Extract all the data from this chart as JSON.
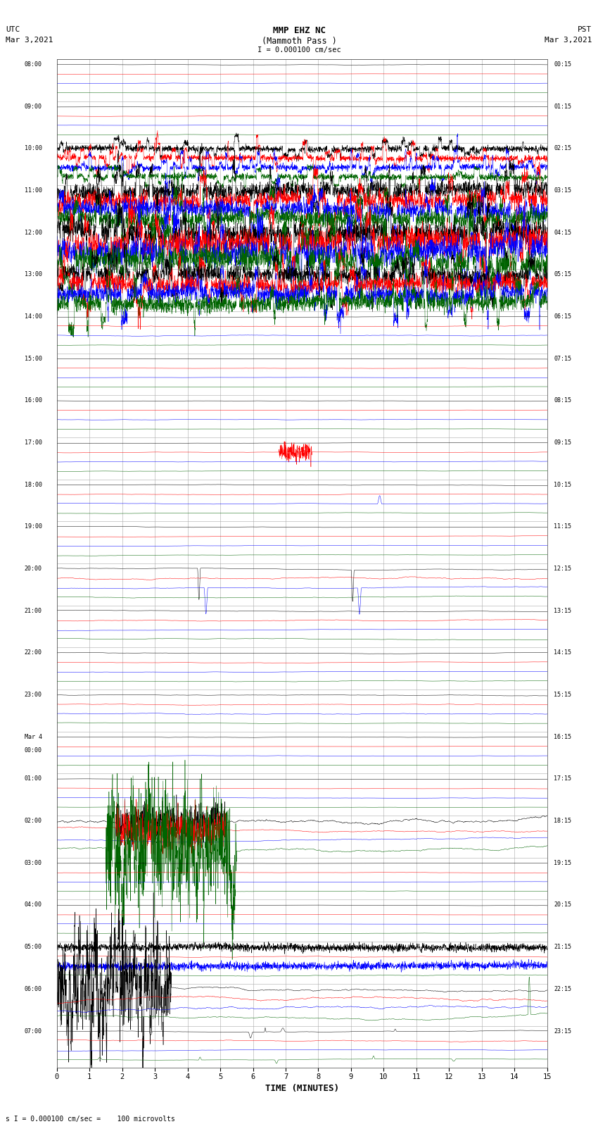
{
  "title_line1": "MMP EHZ NC",
  "title_line2": "(Mammoth Pass )",
  "title_line3": "I = 0.000100 cm/sec",
  "left_label_top": "UTC",
  "left_label_date": "Mar 3,2021",
  "right_label_top": "PST",
  "right_label_date": "Mar 3,2021",
  "xlabel": "TIME (MINUTES)",
  "footer": "s I = 0.000100 cm/sec =    100 microvolts",
  "xmin": 0,
  "xmax": 15,
  "background_color": "#ffffff",
  "trace_colors": [
    "#000000",
    "#ff0000",
    "#0000ff",
    "#006400"
  ],
  "utc_labels": [
    "08:00",
    "09:00",
    "10:00",
    "11:00",
    "12:00",
    "13:00",
    "14:00",
    "15:00",
    "16:00",
    "17:00",
    "18:00",
    "19:00",
    "20:00",
    "21:00",
    "22:00",
    "23:00",
    "Mar 4\n00:00",
    "01:00",
    "02:00",
    "03:00",
    "04:00",
    "05:00",
    "06:00",
    "07:00"
  ],
  "pst_labels": [
    "00:15",
    "01:15",
    "02:15",
    "03:15",
    "04:15",
    "05:15",
    "06:15",
    "07:15",
    "08:15",
    "09:15",
    "10:15",
    "11:15",
    "12:15",
    "13:15",
    "14:15",
    "15:15",
    "16:15",
    "17:15",
    "18:15",
    "19:15",
    "20:15",
    "21:15",
    "22:15",
    "23:15"
  ],
  "num_rows": 24,
  "traces_per_row": 4,
  "noise_scale": [
    0.06,
    0.06,
    0.2,
    0.55,
    0.8,
    0.55,
    0.1,
    0.05,
    0.05,
    0.08,
    0.1,
    0.12,
    0.25,
    0.18,
    0.12,
    0.1,
    0.06,
    0.06,
    0.55,
    0.06,
    0.06,
    0.15,
    0.6,
    0.18
  ]
}
